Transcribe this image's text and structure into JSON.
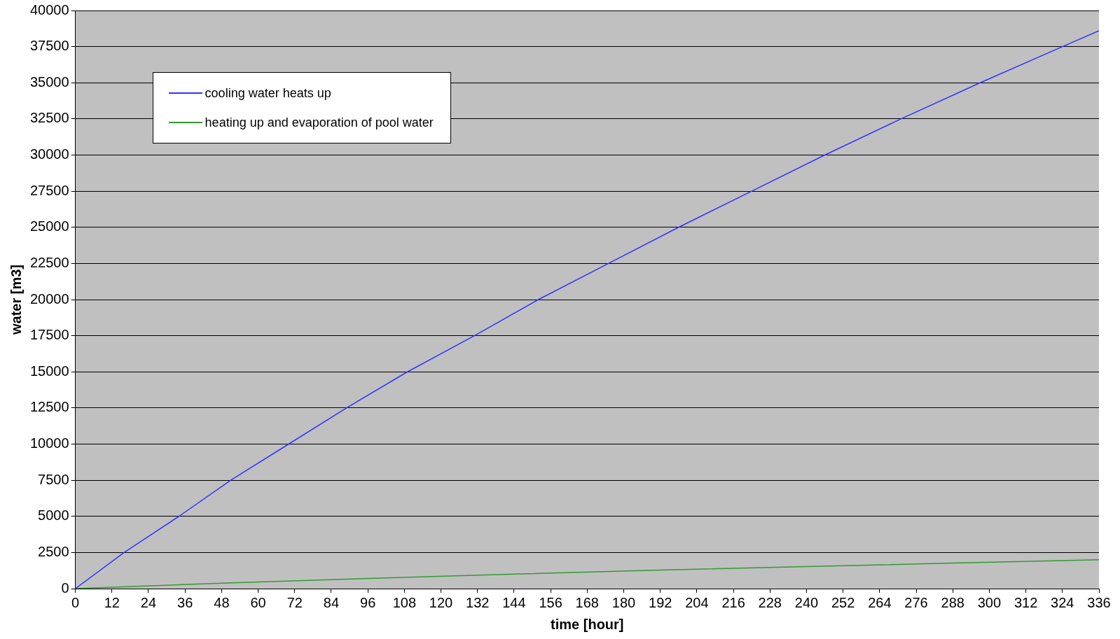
{
  "chart_data": {
    "type": "line",
    "xlabel": "time [hour]",
    "ylabel": "water [m3]",
    "xlim": [
      0,
      336
    ],
    "xticks": [
      0,
      12,
      24,
      36,
      48,
      60,
      72,
      84,
      96,
      108,
      120,
      132,
      144,
      156,
      168,
      180,
      192,
      204,
      216,
      228,
      240,
      252,
      264,
      276,
      288,
      300,
      312,
      324,
      336
    ],
    "ylim": [
      0,
      40000
    ],
    "yticks": [
      0,
      2500,
      5000,
      7500,
      10000,
      12500,
      15000,
      17500,
      20000,
      22500,
      25000,
      27500,
      30000,
      32500,
      35000,
      37500,
      40000
    ],
    "grid": "y",
    "legend": "top left",
    "marker": "none",
    "line_style": "solid",
    "series": [
      {
        "name": "cooling water heats up",
        "color": "#3333ff",
        "x": [
          0,
          16,
          34,
          51,
          70,
          89,
          109,
          131,
          152,
          175,
          198,
          222,
          246,
          271,
          297,
          324,
          336
        ],
        "values": [
          0,
          2500,
          5000,
          7500,
          10000,
          12500,
          15000,
          17500,
          20000,
          22500,
          25000,
          27500,
          30000,
          32500,
          35000,
          37500,
          38600
        ]
      },
      {
        "name": "heating up and evaporation of pool water",
        "color": "#339933",
        "x": [
          0,
          48,
          96,
          144,
          192,
          240,
          288,
          336
        ],
        "values": [
          0,
          380,
          700,
          1000,
          1280,
          1520,
          1770,
          2000
        ]
      }
    ]
  }
}
